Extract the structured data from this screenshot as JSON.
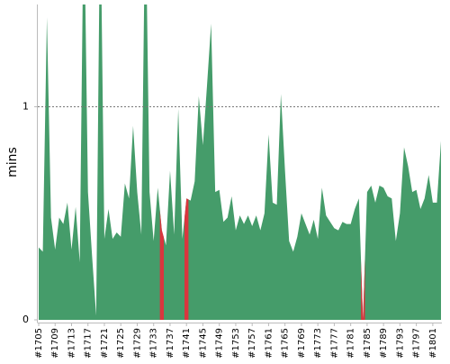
{
  "chart_data": {
    "type": "area",
    "y_label": "mins",
    "categories": [
      "#1705",
      null,
      null,
      null,
      "#1709",
      null,
      null,
      null,
      "#1713",
      null,
      null,
      null,
      "#1717",
      null,
      null,
      null,
      "#1721",
      null,
      null,
      null,
      "#1725",
      null,
      null,
      null,
      "#1729",
      null,
      null,
      null,
      "#1733",
      null,
      null,
      null,
      "#1737",
      null,
      null,
      null,
      "#1741",
      null,
      null,
      null,
      "#1745",
      null,
      null,
      null,
      "#1749",
      null,
      null,
      null,
      "#1753",
      null,
      null,
      null,
      "#1757",
      null,
      null,
      null,
      "#1761",
      null,
      null,
      null,
      "#1765",
      null,
      null,
      null,
      "#1769",
      null,
      null,
      null,
      "#1773",
      null,
      null,
      null,
      "#1777",
      null,
      null,
      null,
      "#1781",
      null,
      null,
      null,
      "#1785",
      null,
      null,
      null,
      "#1789",
      null,
      null,
      null,
      "#1793",
      null,
      null,
      null,
      "#1797",
      null,
      null,
      null,
      "#1801",
      null,
      null
    ],
    "values": [
      0.34,
      0.32,
      1.42,
      0.48,
      0.33,
      0.48,
      0.45,
      0.55,
      0.33,
      0.53,
      0.27,
      2.0,
      0.6,
      0.3,
      0.02,
      2.0,
      0.38,
      0.52,
      0.38,
      0.41,
      0.39,
      0.64,
      0.57,
      0.91,
      0.6,
      0.4,
      2.0,
      0.6,
      0.37,
      0.62,
      0.42,
      0.35,
      0.7,
      0.4,
      0.99,
      0.38,
      0.57,
      0.56,
      0.65,
      1.05,
      0.82,
      1.1,
      1.39,
      0.6,
      0.61,
      0.46,
      0.48,
      0.58,
      0.42,
      0.49,
      0.45,
      0.49,
      0.44,
      0.49,
      0.42,
      0.5,
      0.87,
      0.55,
      0.54,
      1.06,
      0.7,
      0.37,
      0.32,
      0.39,
      0.5,
      0.45,
      0.4,
      0.47,
      0.38,
      0.62,
      0.49,
      0.46,
      0.43,
      0.42,
      0.46,
      0.45,
      0.45,
      0.52,
      0.57,
      0,
      0.6,
      0.63,
      0.55,
      0.63,
      0.62,
      0.58,
      0.57,
      0.37,
      0.5,
      0.81,
      0.72,
      0.6,
      0.61,
      0.52,
      0.57,
      0.68,
      0.55,
      0.55,
      0.84
    ],
    "failed": [
      false,
      false,
      false,
      false,
      false,
      false,
      false,
      false,
      false,
      false,
      false,
      false,
      false,
      false,
      false,
      false,
      false,
      false,
      false,
      false,
      false,
      false,
      false,
      false,
      false,
      false,
      false,
      false,
      false,
      false,
      true,
      false,
      false,
      false,
      false,
      false,
      true,
      false,
      false,
      false,
      false,
      false,
      false,
      false,
      false,
      false,
      false,
      false,
      false,
      false,
      false,
      false,
      false,
      false,
      false,
      false,
      false,
      false,
      false,
      false,
      false,
      false,
      false,
      false,
      false,
      false,
      false,
      false,
      false,
      false,
      false,
      false,
      false,
      false,
      false,
      false,
      false,
      false,
      false,
      true,
      false,
      false,
      false,
      false,
      false,
      false,
      false,
      false,
      false,
      false,
      false,
      false,
      false,
      false,
      false,
      false,
      false,
      false,
      false
    ],
    "color": "#459c6a",
    "fail_color": "#d9363e",
    "ylim": [
      0,
      1.48
    ],
    "yticks": [
      0,
      1
    ],
    "grid": true
  }
}
